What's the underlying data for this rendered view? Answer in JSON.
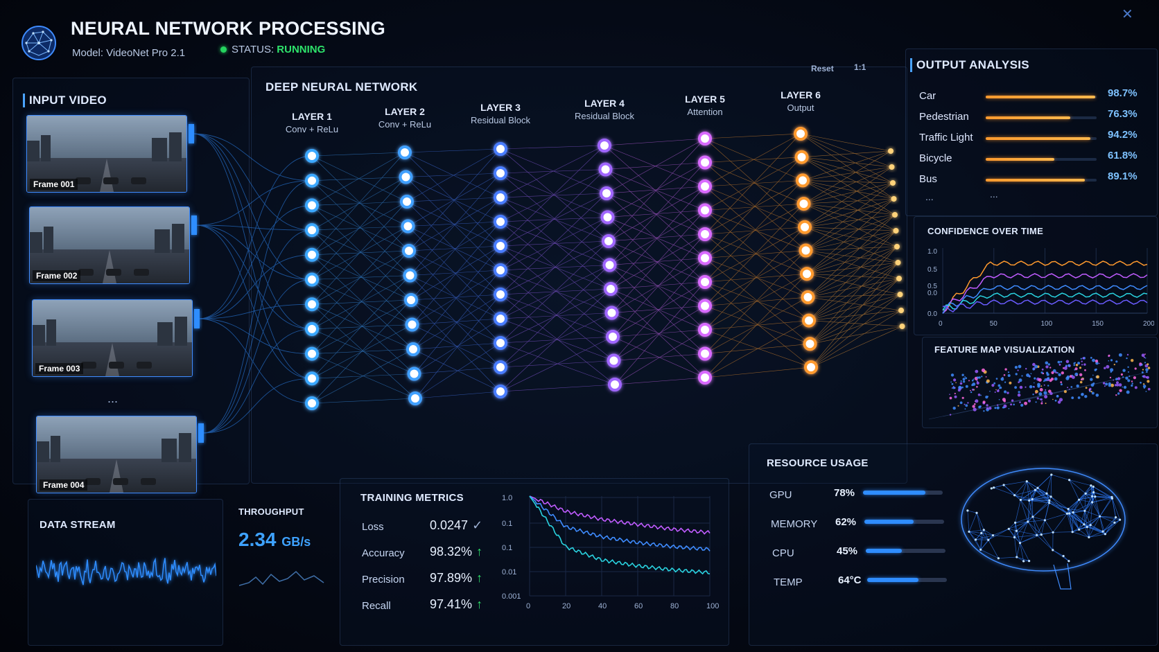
{
  "header": {
    "title": "NEURAL NETWORK PROCESSING",
    "model": "Model: VideoNet Pro 2.1",
    "status_label": "STATUS:",
    "status_value": "RUNNING",
    "close_icon": "close-icon",
    "logo_icon": "brain-network-icon"
  },
  "input_video": {
    "title": "INPUT VIDEO",
    "frames": [
      "Frame 001",
      "Frame 002",
      "Frame 003",
      "Frame 004"
    ],
    "ellipsis": "..."
  },
  "network": {
    "title": "DEEP NEURAL NETWORK",
    "controls": {
      "reset": "Reset",
      "zoom": "1:1"
    },
    "layers": [
      {
        "name": "LAYER 1",
        "desc": "Conv + ReLu",
        "color": "#3aa8ff"
      },
      {
        "name": "LAYER 2",
        "desc": "Conv + ReLu",
        "color": "#3fa0ff"
      },
      {
        "name": "LAYER 3",
        "desc": "Residual Block",
        "color": "#4a7dff"
      },
      {
        "name": "LAYER 4",
        "desc": "Residual Block",
        "color": "#a066ff"
      },
      {
        "name": "LAYER 5",
        "desc": "Attention",
        "color": "#d86bff"
      },
      {
        "name": "LAYER 6",
        "desc": "Output",
        "color": "#ff9a2e"
      }
    ]
  },
  "output_analysis": {
    "title": "OUTPUT ANALYSIS",
    "items": [
      {
        "label": "Car",
        "value": "98.7%",
        "fraction": 0.987
      },
      {
        "label": "Pedestrian",
        "value": "76.3%",
        "fraction": 0.763
      },
      {
        "label": "Traffic Light",
        "value": "94.2%",
        "fraction": 0.942
      },
      {
        "label": "Bicycle",
        "value": "61.8%",
        "fraction": 0.618
      },
      {
        "label": "Bus",
        "value": "89.1%",
        "fraction": 0.891
      }
    ],
    "ellipsis": "...",
    "ellipsis2": "..."
  },
  "confidence_chart": {
    "title": "CONFIDENCE OVER TIME",
    "y_ticks": [
      "1.0",
      "0.5",
      "0.5",
      "0.0",
      "0.0"
    ],
    "x_ticks": [
      "0",
      "50",
      "100",
      "150",
      "200"
    ]
  },
  "feature_map": {
    "title": "FEATURE MAP VISUALIZATION"
  },
  "data_stream": {
    "title": "DATA STREAM"
  },
  "throughput": {
    "title": "THROUGHPUT",
    "value": "2.34",
    "unit": "GB/s"
  },
  "training_metrics": {
    "title": "TRAINING METRICS",
    "rows": [
      {
        "label": "Loss",
        "value": "0.0247",
        "trend": "✓"
      },
      {
        "label": "Accuracy",
        "value": "98.32%",
        "trend": "↑"
      },
      {
        "label": "Precision",
        "value": "97.89%",
        "trend": "↑"
      },
      {
        "label": "Recall",
        "value": "97.41%",
        "trend": "↑"
      }
    ]
  },
  "chart_data": {
    "type": "line",
    "title": "",
    "xlabel": "",
    "ylabel": "",
    "y_ticks": [
      "1.0",
      "0.1",
      "0.1",
      "0.01",
      "0.001"
    ],
    "x": [
      0,
      20,
      40,
      60,
      80,
      100
    ],
    "xlim": [
      0,
      100
    ],
    "series": [
      {
        "color": "#c05cff",
        "values": [
          1.0,
          0.35,
          0.2,
          0.14,
          0.1,
          0.08
        ]
      },
      {
        "color": "#3f8cff",
        "values": [
          1.0,
          0.12,
          0.06,
          0.04,
          0.03,
          0.025
        ]
      },
      {
        "color": "#2ad3e0",
        "values": [
          1.0,
          0.03,
          0.012,
          0.008,
          0.006,
          0.005
        ]
      }
    ]
  },
  "resource_usage": {
    "title": "RESOURCE USAGE",
    "items": [
      {
        "label": "GPU",
        "value": "78%",
        "fraction": 0.78
      },
      {
        "label": "MEMORY",
        "value": "62%",
        "fraction": 0.62
      },
      {
        "label": "CPU",
        "value": "45%",
        "fraction": 0.45
      },
      {
        "label": "TEMP",
        "value": "64°C",
        "fraction": 0.64
      }
    ],
    "brain_icon": "brain-icon"
  }
}
